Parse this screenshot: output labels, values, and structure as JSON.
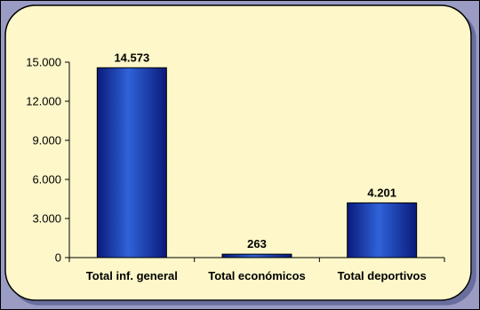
{
  "colors": {
    "page_background": "#9a9cc4",
    "plot_background": "#fdf7c9",
    "bar_fill_dark": "#0a1a7a",
    "bar_fill_light": "#2f63d8",
    "axis": "#000000"
  },
  "chart_data": {
    "type": "bar",
    "title": "",
    "xlabel": "",
    "ylabel": "",
    "categories": [
      "Total inf. general",
      "Total económicos",
      "Total deportivos"
    ],
    "values": [
      14573,
      263,
      4201
    ],
    "value_labels": [
      "14.573",
      "263",
      "4.201"
    ],
    "yticks": [
      0,
      3000,
      6000,
      9000,
      12000,
      15000
    ],
    "ytick_labels": [
      "0",
      "3.000",
      "6.000",
      "9.000",
      "12.000",
      "15.000"
    ],
    "ylim": [
      0,
      15000
    ],
    "grid": false,
    "legend": "none"
  }
}
